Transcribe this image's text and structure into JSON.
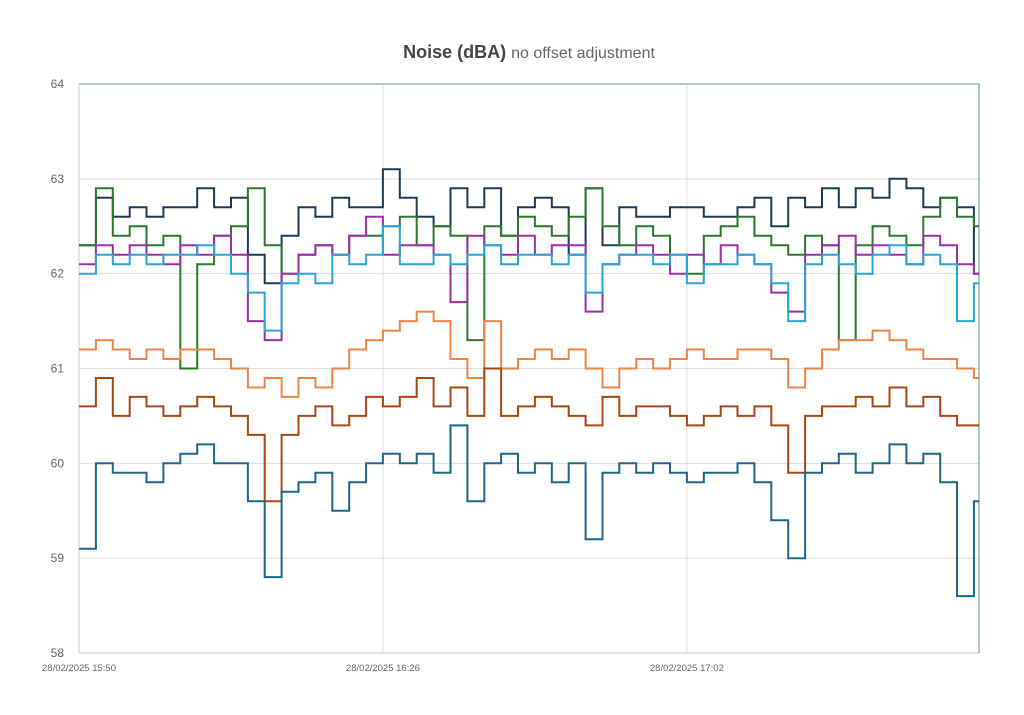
{
  "chart_data": {
    "type": "line",
    "title": "Noise (dBA)",
    "subtitle": "no offset adjustment",
    "xlabel": "",
    "ylabel": "",
    "ylim": [
      58,
      64
    ],
    "yticks": [
      "58",
      "59",
      "60",
      "61",
      "62",
      "63",
      "64"
    ],
    "xlim_minutes_from_start": [
      0,
      106.6
    ],
    "xticks": [
      {
        "label": "28/02/2025 15:50",
        "minute": 0
      },
      {
        "label": "28/02/2025 16:26",
        "minute": 36
      },
      {
        "label": "28/02/2025 17:02",
        "minute": 72
      }
    ],
    "x_step_minutes": 2,
    "grid": true,
    "legend": "none",
    "series": [
      {
        "name": "series-navy",
        "color": "#1b3a57",
        "values": [
          62.3,
          62.8,
          62.6,
          62.7,
          62.6,
          62.7,
          62.7,
          62.9,
          62.7,
          62.8,
          62.2,
          61.9,
          62.4,
          62.7,
          62.6,
          62.8,
          62.7,
          62.7,
          63.1,
          62.8,
          62.6,
          62.5,
          62.9,
          62.7,
          62.9,
          62.4,
          62.7,
          62.8,
          62.7,
          62.2,
          62.9,
          62.3,
          62.7,
          62.6,
          62.6,
          62.7,
          62.7,
          62.6,
          62.6,
          62.7,
          62.8,
          62.5,
          62.8,
          62.7,
          62.9,
          62.7,
          62.9,
          62.8,
          63.0,
          62.9,
          62.7,
          62.8,
          62.7,
          62.0
        ]
      },
      {
        "name": "series-green",
        "color": "#2b7a2b",
        "values": [
          62.3,
          62.9,
          62.4,
          62.5,
          62.3,
          62.4,
          61.0,
          62.1,
          62.4,
          62.5,
          62.9,
          62.3,
          62.0,
          62.2,
          62.3,
          62.2,
          62.4,
          62.4,
          62.5,
          62.6,
          62.3,
          62.5,
          62.4,
          61.3,
          62.5,
          62.4,
          62.6,
          62.5,
          62.4,
          62.6,
          62.9,
          62.5,
          62.3,
          62.5,
          62.4,
          62.2,
          62.0,
          62.4,
          62.5,
          62.6,
          62.4,
          62.3,
          62.2,
          62.4,
          62.3,
          61.3,
          62.3,
          62.5,
          62.4,
          62.3,
          62.6,
          62.8,
          62.6,
          62.5
        ]
      },
      {
        "name": "series-purple",
        "color": "#9c2fa6",
        "values": [
          62.1,
          62.3,
          62.2,
          62.3,
          62.2,
          62.1,
          62.3,
          62.2,
          62.4,
          62.2,
          61.5,
          61.3,
          62.0,
          62.2,
          62.3,
          62.2,
          62.4,
          62.6,
          62.2,
          62.3,
          62.3,
          62.2,
          61.7,
          62.4,
          62.3,
          62.2,
          62.4,
          62.2,
          62.3,
          62.3,
          61.6,
          62.1,
          62.2,
          62.3,
          62.2,
          62.0,
          62.2,
          62.1,
          62.3,
          62.2,
          62.1,
          61.8,
          61.6,
          62.2,
          62.3,
          62.4,
          62.2,
          62.3,
          62.2,
          62.1,
          62.4,
          62.3,
          62.1,
          62.0
        ]
      },
      {
        "name": "series-light-blue",
        "color": "#2aa6d6",
        "values": [
          62.0,
          62.2,
          62.1,
          62.2,
          62.1,
          62.2,
          62.2,
          62.3,
          62.2,
          62.0,
          61.8,
          61.4,
          61.9,
          62.0,
          61.9,
          62.2,
          62.1,
          62.2,
          62.5,
          62.1,
          62.1,
          62.2,
          62.1,
          62.2,
          62.3,
          62.1,
          62.2,
          62.2,
          62.1,
          62.2,
          61.8,
          62.1,
          62.2,
          62.2,
          62.1,
          62.2,
          61.9,
          62.1,
          62.1,
          62.2,
          62.1,
          61.9,
          61.5,
          62.1,
          62.2,
          62.1,
          62.0,
          62.2,
          62.3,
          62.1,
          62.2,
          62.1,
          61.5,
          61.9
        ]
      },
      {
        "name": "series-orange",
        "color": "#ef8447",
        "values": [
          61.2,
          61.3,
          61.2,
          61.1,
          61.2,
          61.1,
          61.2,
          61.2,
          61.1,
          61.0,
          60.8,
          60.9,
          60.7,
          60.9,
          60.8,
          61.0,
          61.2,
          61.3,
          61.4,
          61.5,
          61.6,
          61.5,
          61.1,
          60.9,
          61.5,
          61.0,
          61.1,
          61.2,
          61.1,
          61.2,
          61.0,
          60.8,
          61.0,
          61.1,
          61.0,
          61.1,
          61.2,
          61.1,
          61.1,
          61.2,
          61.2,
          61.1,
          60.8,
          61.0,
          61.2,
          61.3,
          61.3,
          61.4,
          61.3,
          61.2,
          61.1,
          61.1,
          61.0,
          60.9
        ]
      },
      {
        "name": "series-brown",
        "color": "#a8470f",
        "values": [
          60.6,
          60.9,
          60.5,
          60.7,
          60.6,
          60.5,
          60.6,
          60.7,
          60.6,
          60.5,
          60.3,
          59.6,
          60.3,
          60.5,
          60.6,
          60.4,
          60.5,
          60.7,
          60.6,
          60.7,
          60.9,
          60.6,
          60.8,
          60.5,
          61.0,
          60.5,
          60.6,
          60.7,
          60.6,
          60.5,
          60.4,
          60.7,
          60.5,
          60.6,
          60.6,
          60.5,
          60.4,
          60.5,
          60.6,
          60.5,
          60.6,
          60.4,
          59.9,
          60.5,
          60.6,
          60.6,
          60.7,
          60.6,
          60.8,
          60.6,
          60.7,
          60.5,
          60.4,
          60.4
        ]
      },
      {
        "name": "series-teal",
        "color": "#1c6689",
        "values": [
          59.1,
          60.0,
          59.9,
          59.9,
          59.8,
          60.0,
          60.1,
          60.2,
          60.0,
          60.0,
          59.6,
          58.8,
          59.7,
          59.8,
          59.9,
          59.5,
          59.8,
          60.0,
          60.1,
          60.0,
          60.1,
          59.9,
          60.4,
          59.6,
          60.0,
          60.1,
          59.9,
          60.0,
          59.8,
          60.0,
          59.2,
          59.9,
          60.0,
          59.9,
          60.0,
          59.9,
          59.8,
          59.9,
          59.9,
          60.0,
          59.8,
          59.4,
          59.0,
          59.9,
          60.0,
          60.1,
          59.9,
          60.0,
          60.2,
          60.0,
          60.1,
          59.8,
          58.6,
          59.6
        ]
      }
    ]
  }
}
